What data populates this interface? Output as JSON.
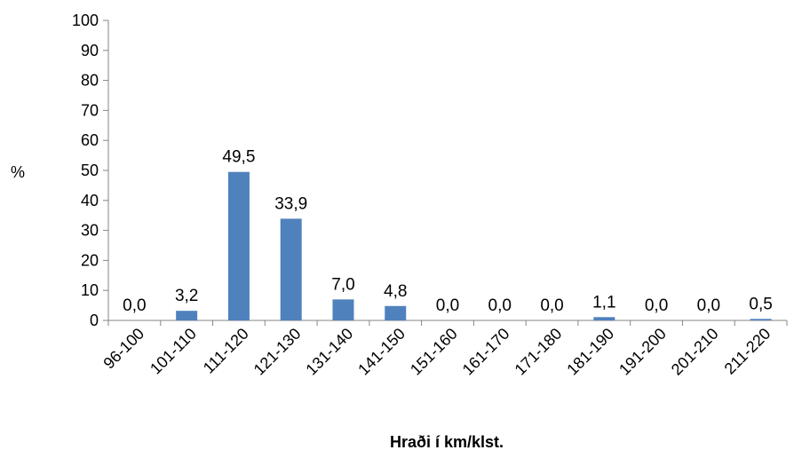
{
  "chart_data": {
    "type": "bar",
    "ylabel": "%",
    "xlabel": "Hraði í km/klst.",
    "ylim": [
      0,
      100
    ],
    "ytick_step": 10,
    "grid": false,
    "legend": "none",
    "bar_color": "#4F81BD",
    "categories": [
      "96-100",
      "101-110",
      "111-120",
      "121-130",
      "131-140",
      "141-150",
      "151-160",
      "161-170",
      "171-180",
      "181-190",
      "191-200",
      "201-210",
      "211-220"
    ],
    "values": [
      0.0,
      3.2,
      49.5,
      33.9,
      7.0,
      4.8,
      0.0,
      0.0,
      0.0,
      1.1,
      0.0,
      0.0,
      0.5
    ],
    "data_labels": [
      "0,0",
      "3,2",
      "49,5",
      "33,9",
      "7,0",
      "4,8",
      "0,0",
      "0,0",
      "0,0",
      "1,1",
      "0,0",
      "0,0",
      "0,5"
    ]
  }
}
